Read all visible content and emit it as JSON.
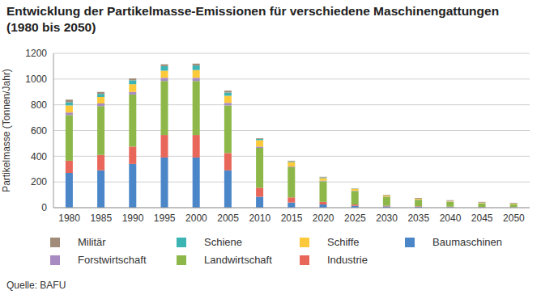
{
  "chart_data": {
    "type": "bar",
    "title": "Entwicklung der Partikelmasse-Emissionen für verschiedene Maschinengattungen",
    "subtitle": "(1980 bis 2050)",
    "y_label": "Partikelmasse (Tonnen/Jahr)",
    "source": "Quelle: BAFU",
    "categories": [
      "1980",
      "1985",
      "1990",
      "1995",
      "2000",
      "2005",
      "2010",
      "2015",
      "2020",
      "2025",
      "2030",
      "2035",
      "2040",
      "2045",
      "2050"
    ],
    "series": [
      {
        "name": "Baumaschinen",
        "color": "#4a86c8",
        "values": [
          270,
          290,
          340,
          390,
          390,
          290,
          85,
          40,
          25,
          15,
          10,
          7,
          5,
          4,
          3
        ]
      },
      {
        "name": "Industrie",
        "color": "#e8675a",
        "values": [
          95,
          120,
          135,
          175,
          175,
          135,
          70,
          40,
          20,
          10,
          5,
          4,
          3,
          2,
          2
        ]
      },
      {
        "name": "Landwirtschaft",
        "color": "#8db849",
        "values": [
          355,
          380,
          405,
          420,
          420,
          370,
          310,
          235,
          160,
          105,
          70,
          50,
          38,
          28,
          22
        ]
      },
      {
        "name": "Forstwirtschaft",
        "color": "#a98bc4",
        "values": [
          20,
          20,
          20,
          25,
          25,
          20,
          10,
          5,
          5,
          3,
          2,
          2,
          2,
          1,
          1
        ]
      },
      {
        "name": "Schiffe",
        "color": "#fcc93a",
        "values": [
          55,
          50,
          60,
          55,
          60,
          55,
          50,
          35,
          20,
          12,
          8,
          6,
          4,
          4,
          4
        ]
      },
      {
        "name": "Schiene",
        "color": "#3cb4b4",
        "values": [
          25,
          25,
          30,
          35,
          35,
          25,
          10,
          5,
          5,
          2,
          1,
          1,
          1,
          1,
          1
        ]
      },
      {
        "name": "Militär",
        "color": "#a08c78",
        "values": [
          20,
          15,
          15,
          15,
          15,
          15,
          5,
          5,
          5,
          3,
          4,
          5,
          5,
          5,
          5
        ]
      }
    ],
    "ylim": [
      0,
      1200
    ],
    "yticks": [
      0,
      200,
      400,
      600,
      800,
      1000,
      1200
    ],
    "grid": true,
    "stacked": true,
    "legend": "bottom"
  }
}
